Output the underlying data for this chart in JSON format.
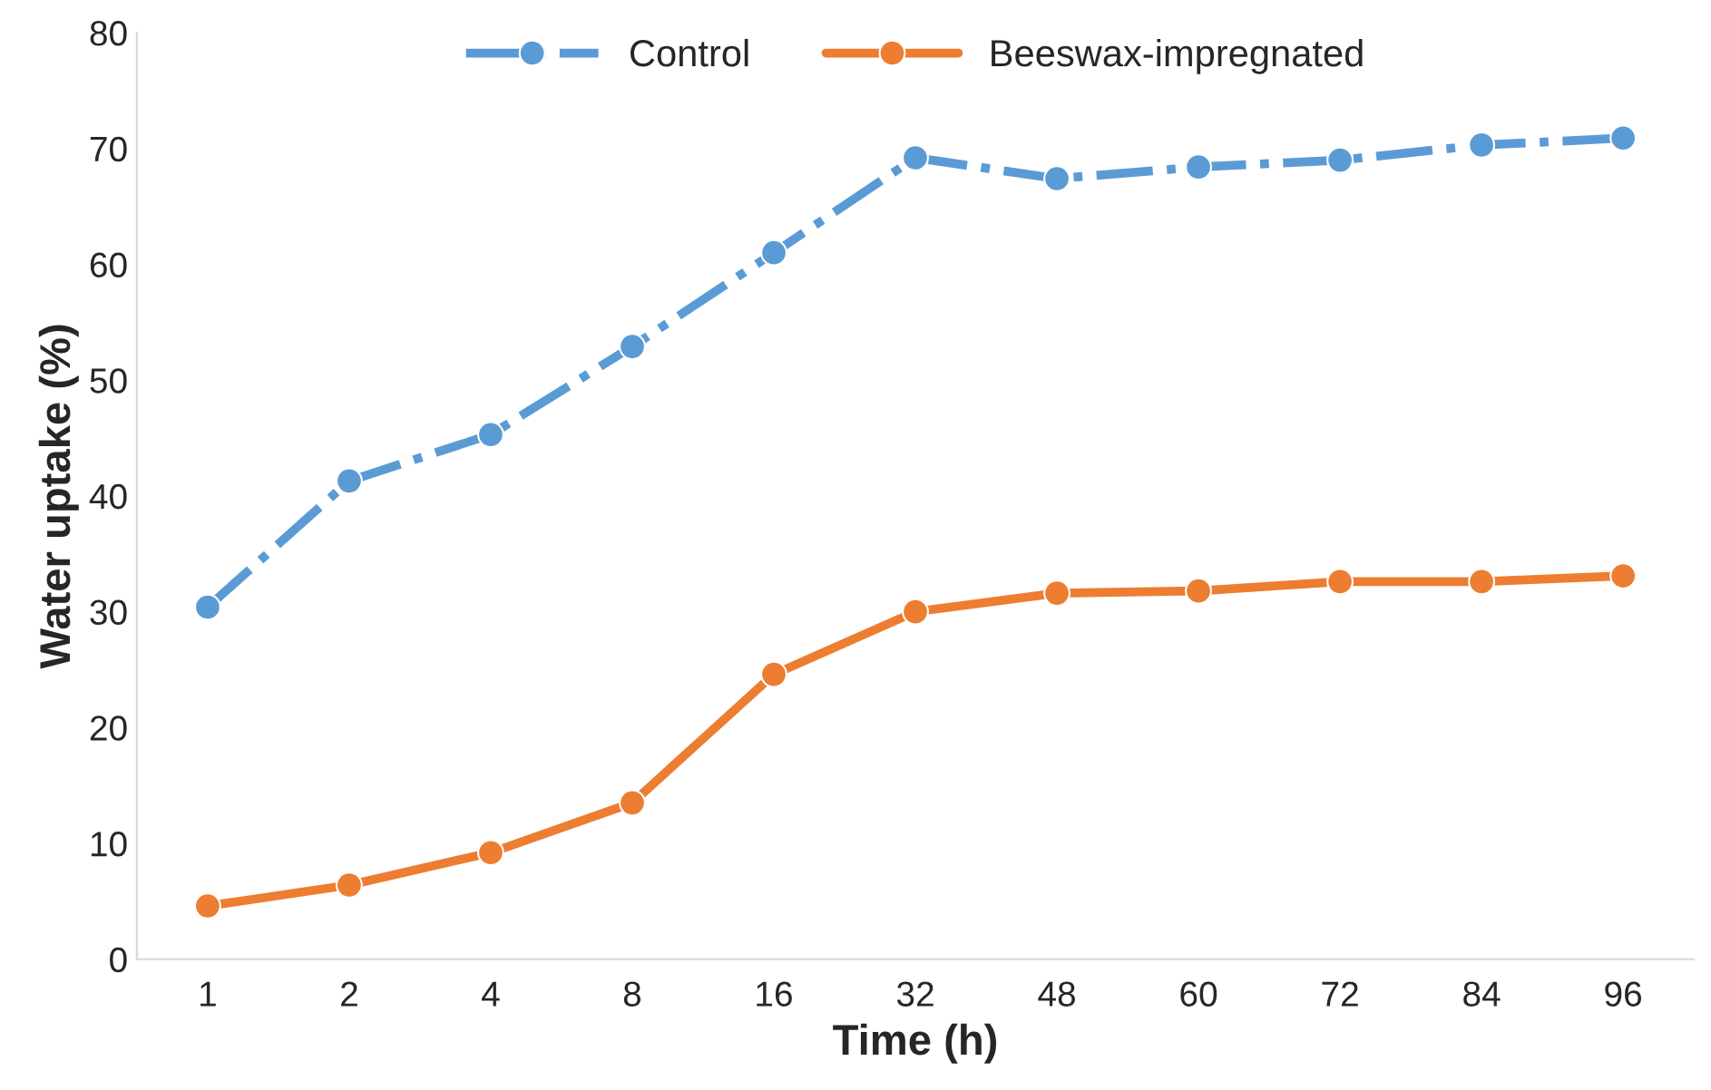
{
  "chart_data": {
    "type": "line",
    "xlabel": "Time (h)",
    "ylabel": "Water uptake (%)",
    "categories": [
      "1",
      "2",
      "4",
      "8",
      "16",
      "32",
      "48",
      "60",
      "72",
      "84",
      "96"
    ],
    "series": [
      {
        "name": "Control",
        "color": "#5b9bd5",
        "line_style": "dashdot",
        "values": [
          30.4,
          41.3,
          45.3,
          52.9,
          61.0,
          69.2,
          67.4,
          68.4,
          69.0,
          70.3,
          70.9
        ]
      },
      {
        "name": "Beeswax-impregnated",
        "color": "#ed7d31",
        "line_style": "solid",
        "values": [
          4.6,
          6.4,
          9.2,
          13.5,
          24.6,
          30.0,
          31.6,
          31.8,
          32.6,
          32.6,
          33.1
        ]
      }
    ],
    "ylim": [
      0,
      80
    ],
    "yticks": [
      0,
      10,
      20,
      30,
      40,
      50,
      60,
      70,
      80
    ],
    "marker": "circle",
    "legend": "top",
    "grid": false
  }
}
